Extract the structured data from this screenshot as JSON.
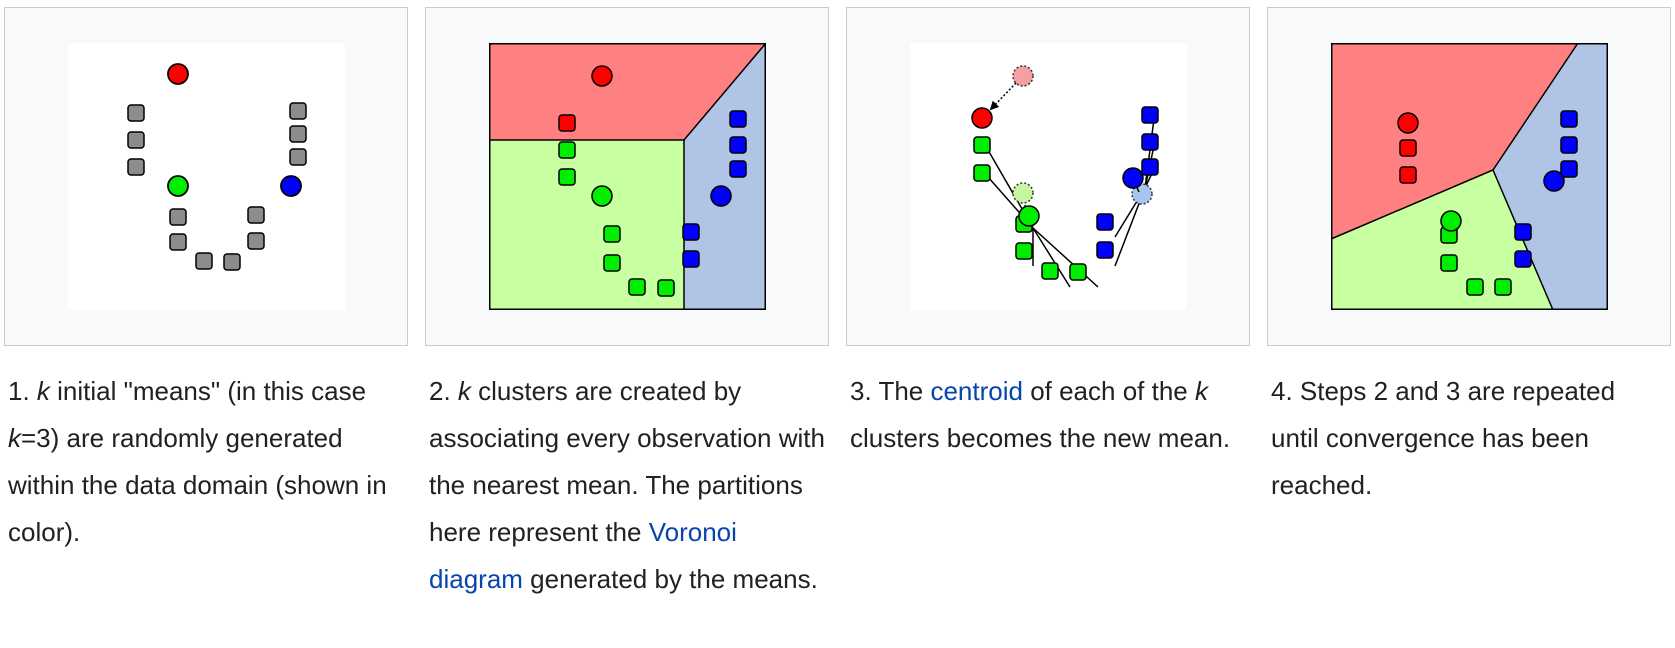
{
  "colors": {
    "red": "#ff0000",
    "green": "#00ee00",
    "blue": "#0000ff",
    "gray": "#8c8c8c",
    "red_region": "#ff8080",
    "green_region": "#c8ffa0",
    "blue_region": "#b0c4e6",
    "link": "#0645ad",
    "frame_bg": "#f8f9fa",
    "frame_border": "#c8ccd1"
  },
  "steps": [
    {
      "number": "1.",
      "k": "k",
      "text_a": " initial \"means\" (in this case ",
      "k2": "k",
      "text_b": "=3) are randomly generated within the data domain (shown in color)."
    },
    {
      "number": "2.",
      "k": "k",
      "text_a": " clusters are created by associating every observation with the nearest mean. The partitions here represent the ",
      "link": "Voronoi diagram",
      "text_b": " generated by the means."
    },
    {
      "number": "3.",
      "text_a": " The ",
      "link": "centroid",
      "text_b": " of each of the ",
      "k": "k",
      "text_c": " clusters becomes the new mean."
    },
    {
      "number": "4.",
      "text_a": " Steps 2 and 3 are repeated until convergence has been reached."
    }
  ]
}
